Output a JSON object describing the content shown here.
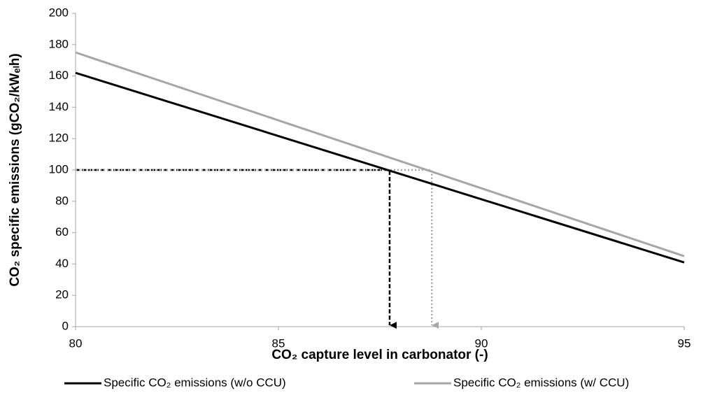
{
  "chart_data": {
    "type": "line",
    "x_label": "CO₂ capture level in carbonator (-)",
    "y_label": "CO₂ specific emissions (gCO₂/kWₑₗh)",
    "x": [
      80,
      95
    ],
    "series": [
      {
        "name": "Specific CO₂ emissions (w/o CCU)",
        "color": "#000000",
        "values": [
          162,
          41
        ]
      },
      {
        "name": "Specific CO₂ emissions (w/ CCU)",
        "color": "#a6a6a6",
        "values": [
          175,
          45
        ]
      }
    ],
    "markers": [
      {
        "x": 87.74,
        "y": 100,
        "color": "#000000",
        "style": "dashed"
      },
      {
        "x": 88.78,
        "y": 100,
        "color": "#a6a6a6",
        "style": "dotted"
      }
    ],
    "xlim": [
      80,
      95
    ],
    "xticks": [
      80,
      85,
      90,
      95
    ],
    "ylim": [
      0,
      200
    ],
    "yticks": [
      0,
      20,
      40,
      60,
      80,
      100,
      120,
      140,
      160,
      180,
      200
    ],
    "grid": false,
    "legend": "bottom"
  }
}
